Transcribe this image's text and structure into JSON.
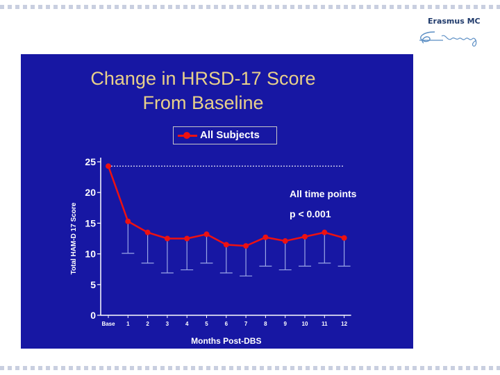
{
  "logo": {
    "text": "Erasmus MC"
  },
  "colors": {
    "slide_background": "#1717a3",
    "title": "#e8d08a",
    "series_line": "#ee1111",
    "axis": "#ffffff",
    "error_bars": "#9aa6e6",
    "reference_line": "#ffffff"
  },
  "chart_data": {
    "type": "line",
    "title": "Change in HRSD-17 Score",
    "subtitle": "From Baseline",
    "xlabel": "Months Post-DBS",
    "ylabel": "Total HAM-D 17 Score",
    "categories": [
      "Base",
      "1",
      "2",
      "3",
      "4",
      "5",
      "6",
      "7",
      "8",
      "9",
      "10",
      "11",
      "12"
    ],
    "ylim": [
      0,
      25
    ],
    "yticks": [
      0,
      5,
      10,
      15,
      20,
      25
    ],
    "series": [
      {
        "name": "All Subjects",
        "values": [
          24.3,
          15.3,
          13.5,
          12.5,
          12.5,
          13.2,
          11.5,
          11.3,
          12.7,
          12.1,
          12.8,
          13.5,
          12.6
        ],
        "error_lower": [
          24.3,
          10.1,
          8.5,
          6.9,
          7.4,
          8.5,
          6.9,
          6.4,
          8.0,
          7.4,
          8.0,
          8.5,
          8.0
        ]
      }
    ],
    "reference_line": {
      "y": 24.3,
      "style": "dotted"
    },
    "legend": "top-center",
    "grid": false,
    "annotations": [
      "All time points",
      "p < 0.001"
    ]
  }
}
